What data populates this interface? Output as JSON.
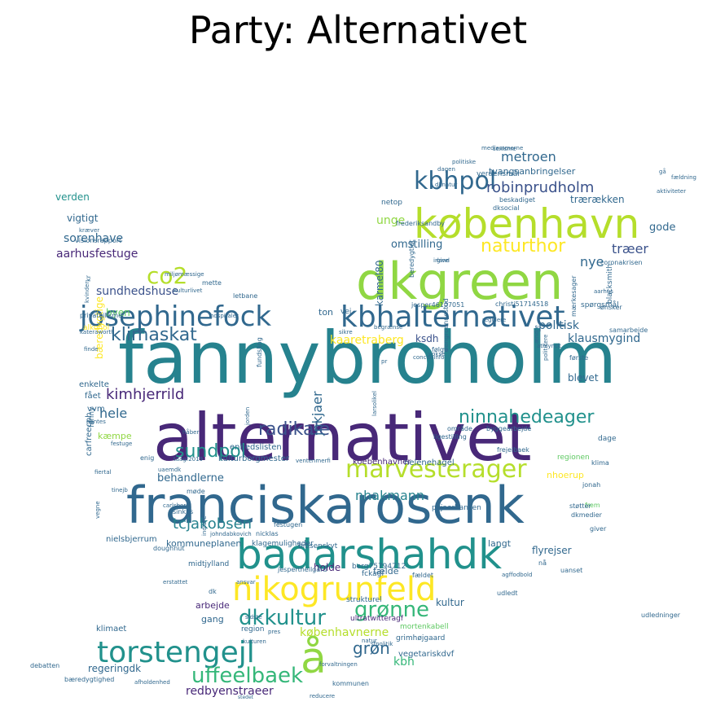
{
  "title": "Party: Alternativet",
  "palette": {
    "c1": "#440154",
    "c2": "#3b528b",
    "c3": "#21918c",
    "c4": "#5ec962",
    "c5": "#fde725",
    "c6": "#31688e",
    "c7": "#35b779",
    "c8": "#90d743",
    "c9": "#482878",
    "c10": "#26828e",
    "c11": "#b5de2b"
  },
  "words": [
    {
      "text": "fannybroholm",
      "color": "c10"
    },
    {
      "text": "alternativet",
      "color": "c9"
    },
    {
      "text": "franciskarosenk",
      "color": "c6"
    },
    {
      "text": "badarshahdk",
      "color": "c3"
    },
    {
      "text": "dkgreen",
      "color": "c8"
    },
    {
      "text": "københavn",
      "color": "c11"
    },
    {
      "text": "nikogrunfeld",
      "color": "c5"
    },
    {
      "text": "kbhalternativet",
      "color": "c6"
    },
    {
      "text": "josephinefock",
      "color": "c6"
    },
    {
      "text": "torstengejl",
      "color": "c3"
    },
    {
      "text": "marvesterager",
      "color": "c11"
    },
    {
      "text": "å",
      "color": "c8"
    },
    {
      "text": "kbhpol",
      "color": "c6"
    },
    {
      "text": "dkkultur",
      "color": "c3"
    },
    {
      "text": "grønne",
      "color": "c7"
    },
    {
      "text": "uffeelbaek",
      "color": "c7"
    },
    {
      "text": "radikale",
      "color": "c2"
    },
    {
      "text": "klimaskat",
      "color": "c6"
    },
    {
      "text": "sundpol",
      "color": "c3"
    },
    {
      "text": "ninnahedeager",
      "color": "c3"
    },
    {
      "text": "naturthor",
      "color": "c5"
    },
    {
      "text": "co2",
      "color": "c11"
    },
    {
      "text": "robinprudholm",
      "color": "c2"
    },
    {
      "text": "metroen",
      "color": "c6"
    },
    {
      "text": "træer",
      "color": "c2"
    },
    {
      "text": "nye",
      "color": "c6"
    },
    {
      "text": "klausmygind",
      "color": "c6"
    },
    {
      "text": "kimhjerrild",
      "color": "c9"
    },
    {
      "text": "grøn",
      "color": "c6"
    },
    {
      "text": "tcjakobsen",
      "color": "c10"
    },
    {
      "text": "nhakmann",
      "color": "c10"
    },
    {
      "text": "jnkjaer",
      "color": "c6"
    },
    {
      "text": "københavnerne",
      "color": "c11"
    },
    {
      "text": "redbyenstraeer",
      "color": "c9"
    },
    {
      "text": "kaaretraberg",
      "color": "c5"
    },
    {
      "text": "sundhedshuse",
      "color": "c2"
    },
    {
      "text": "aarhusfestuge",
      "color": "c9"
    },
    {
      "text": "sorenhave",
      "color": "c6"
    },
    {
      "text": "omstilling",
      "color": "c6"
    },
    {
      "text": "unge",
      "color": "c8"
    },
    {
      "text": "kbh",
      "color": "c7"
    },
    {
      "text": "hele",
      "color": "c6"
    },
    {
      "text": "behandlerne",
      "color": "c6"
    },
    {
      "text": "politisk",
      "color": "c6"
    },
    {
      "text": "blevet",
      "color": "c6"
    },
    {
      "text": "vigtigt",
      "color": "c6"
    },
    {
      "text": "byen",
      "color": "c4"
    },
    {
      "text": "kultur",
      "color": "c6"
    },
    {
      "text": "gode",
      "color": "c6"
    },
    {
      "text": "ksdh",
      "color": "c2"
    },
    {
      "text": "karmel80",
      "color": "c6"
    },
    {
      "text": "trærækken",
      "color": "c6"
    },
    {
      "text": "tvangsanbringelser",
      "color": "c6"
    },
    {
      "text": "verden",
      "color": "c3"
    },
    {
      "text": "bæredygtige",
      "color": "c5"
    },
    {
      "text": "regeringdk",
      "color": "c6"
    },
    {
      "text": "gang",
      "color": "c6"
    },
    {
      "text": "arbejde",
      "color": "c9"
    },
    {
      "text": "holde",
      "color": "c9"
    },
    {
      "text": "fælde",
      "color": "c6"
    },
    {
      "text": "flyrejser",
      "color": "c6"
    },
    {
      "text": "langt",
      "color": "c6"
    },
    {
      "text": "nhoerup",
      "color": "c5"
    },
    {
      "text": "kommuneplanen",
      "color": "c6"
    },
    {
      "text": "helenehagel",
      "color": "c6"
    },
    {
      "text": "enhedslisten",
      "color": "c6"
    },
    {
      "text": "kulturborgmester",
      "color": "c6"
    },
    {
      "text": "koebenhavner",
      "color": "c9"
    },
    {
      "text": "kæmpe",
      "color": "c8"
    },
    {
      "text": "carfreecph",
      "color": "c6"
    },
    {
      "text": "nielsbjerrum",
      "color": "c6"
    },
    {
      "text": "fckagf",
      "color": "c6"
    },
    {
      "text": "vegetariskdvf",
      "color": "c6"
    },
    {
      "text": "strukturel",
      "color": "c6"
    },
    {
      "text": "klimaet",
      "color": "c6"
    },
    {
      "text": "region",
      "color": "c6"
    },
    {
      "text": "grimhøjgaard",
      "color": "c6"
    },
    {
      "text": "ultratwitteragf",
      "color": "c9"
    },
    {
      "text": "mortenkabell",
      "color": "c4"
    },
    {
      "text": "christi51714518",
      "color": "c6"
    },
    {
      "text": "verdensmål",
      "color": "c6"
    },
    {
      "text": "bibsenskyt",
      "color": "c6"
    },
    {
      "text": "berg75794712",
      "color": "c6"
    },
    {
      "text": "pkjaerhansen",
      "color": "c6"
    },
    {
      "text": "byggearbejde",
      "color": "c6"
    },
    {
      "text": "ligestilling",
      "color": "c6"
    },
    {
      "text": "frejelbaek",
      "color": "c6"
    },
    {
      "text": "regionen",
      "color": "c4"
    },
    {
      "text": "dage",
      "color": "c6"
    },
    {
      "text": "klima",
      "color": "c6"
    },
    {
      "text": "jonah",
      "color": "c6"
    },
    {
      "text": "frem",
      "color": "c4"
    },
    {
      "text": "dkmedier",
      "color": "c6"
    },
    {
      "text": "støtter",
      "color": "c6"
    },
    {
      "text": "giver",
      "color": "c6"
    },
    {
      "text": "nå",
      "color": "c6"
    },
    {
      "text": "uanset",
      "color": "c6"
    },
    {
      "text": "agffodbold",
      "color": "c6"
    },
    {
      "text": "udledt",
      "color": "c6"
    },
    {
      "text": "spørgsmål",
      "color": "c6"
    },
    {
      "text": "ønsker",
      "color": "c6"
    },
    {
      "text": "samarbejde",
      "color": "c6"
    },
    {
      "text": "blacksmith",
      "color": "c6"
    },
    {
      "text": "aarhus",
      "color": "c6"
    },
    {
      "text": "coronakrisen",
      "color": "c6"
    },
    {
      "text": "mærkesager",
      "color": "c6"
    },
    {
      "text": "beredygtigt",
      "color": "c6"
    },
    {
      "text": "frederiksandby",
      "color": "c6"
    },
    {
      "text": "beskadiget",
      "color": "c6"
    },
    {
      "text": "dksocial",
      "color": "c6"
    },
    {
      "text": "netop",
      "color": "c6"
    },
    {
      "text": "dagen",
      "color": "c6"
    },
    {
      "text": "politiske",
      "color": "c6"
    },
    {
      "text": "sexisme",
      "color": "c6"
    },
    {
      "text": "medlemmerne",
      "color": "c6"
    },
    {
      "text": "dknatur",
      "color": "c6"
    },
    {
      "text": "irland",
      "color": "c6"
    },
    {
      "text": "give",
      "color": "c6"
    },
    {
      "text": "jesper46107051",
      "color": "c6"
    },
    {
      "text": "ton",
      "color": "c6"
    },
    {
      "text": "vej",
      "color": "c6"
    },
    {
      "text": "alkohol",
      "color": "c5"
    },
    {
      "text": "privatbilisme",
      "color": "c6"
    },
    {
      "text": "kateraworth",
      "color": "c6"
    },
    {
      "text": "kulturlivet",
      "color": "c6"
    },
    {
      "text": "hospitaler",
      "color": "c6"
    },
    {
      "text": "letbane",
      "color": "c6"
    },
    {
      "text": "mette",
      "color": "c6"
    },
    {
      "text": "miljømæssige",
      "color": "c6"
    },
    {
      "text": "kræver",
      "color": "c6"
    },
    {
      "text": "visionsrapport",
      "color": "c6"
    },
    {
      "text": "kr",
      "color": "c6"
    },
    {
      "text": "kvinder",
      "color": "c6"
    },
    {
      "text": "finde",
      "color": "c6"
    },
    {
      "text": "enkelte",
      "color": "c6"
    },
    {
      "text": "fået",
      "color": "c6"
    },
    {
      "text": "vvm",
      "color": "c6"
    },
    {
      "text": "dantes",
      "color": "c6"
    },
    {
      "text": "fanny",
      "color": "c6"
    },
    {
      "text": "enig",
      "color": "c6"
    },
    {
      "text": "uaemdk",
      "color": "c6"
    },
    {
      "text": "indføre",
      "color": "c6"
    },
    {
      "text": "johndabkovich",
      "color": "c6"
    },
    {
      "text": "møde",
      "color": "c6"
    },
    {
      "text": "taagf2019",
      "color": "c6"
    },
    {
      "text": "håber",
      "color": "c6"
    },
    {
      "text": "klagemuligheder",
      "color": "c6"
    },
    {
      "text": "nicklas",
      "color": "c6"
    },
    {
      "text": "festugen",
      "color": "c6"
    },
    {
      "text": "sinkbs",
      "color": "c6"
    },
    {
      "text": "carlsberg",
      "color": "c6"
    },
    {
      "text": "doughnut",
      "color": "c6"
    },
    {
      "text": "midtjylland",
      "color": "c6"
    },
    {
      "text": "jespertheilgard",
      "color": "c6"
    },
    {
      "text": "fældet",
      "color": "c6"
    },
    {
      "text": "dk",
      "color": "c6"
    },
    {
      "text": "ansvar",
      "color": "c6"
    },
    {
      "text": "pres",
      "color": "c6"
    },
    {
      "text": "sidste",
      "color": "c6"
    },
    {
      "text": "kulturen",
      "color": "c6"
    },
    {
      "text": "debatten",
      "color": "c6"
    },
    {
      "text": "bæredygtighed",
      "color": "c6"
    },
    {
      "text": "afholdenhed",
      "color": "c6"
    },
    {
      "text": "stedet",
      "color": "c6"
    },
    {
      "text": "reducere",
      "color": "c6"
    },
    {
      "text": "kommunen",
      "color": "c6"
    },
    {
      "text": "forvaltningen",
      "color": "c6"
    },
    {
      "text": "natur",
      "color": "c6"
    },
    {
      "text": "sfpolitik",
      "color": "c6"
    },
    {
      "text": "udledninger",
      "color": "c6"
    },
    {
      "text": "gå",
      "color": "c6"
    },
    {
      "text": "fældning",
      "color": "c6"
    },
    {
      "text": "aktiviteter",
      "color": "c6"
    },
    {
      "text": "regulere",
      "color": "c6"
    },
    {
      "text": "dengroennestud",
      "color": "c6"
    },
    {
      "text": "vokse",
      "color": "c6"
    },
    {
      "text": "følge",
      "color": "c6"
    },
    {
      "text": "concitoinfo",
      "color": "c6"
    },
    {
      "text": "begrænse",
      "color": "c6"
    },
    {
      "text": "område",
      "color": "c6"
    },
    {
      "text": "ændre",
      "color": "c6"
    },
    {
      "text": "politikere",
      "color": "c6"
    },
    {
      "text": "første",
      "color": "c6"
    },
    {
      "text": "athlynck",
      "color": "c6"
    },
    {
      "text": "tinejb",
      "color": "c6"
    },
    {
      "text": "fiertal",
      "color": "c6"
    },
    {
      "text": "vegne",
      "color": "c6"
    },
    {
      "text": "festuge",
      "color": "c6"
    },
    {
      "text": "fundsling",
      "color": "c6"
    },
    {
      "text": "jorden",
      "color": "c6"
    },
    {
      "text": "sikre",
      "color": "c6"
    },
    {
      "text": "larsolikel",
      "color": "c6"
    },
    {
      "text": "ventenmerfi",
      "color": "c6"
    },
    {
      "text": "erstattet",
      "color": "c6"
    },
    {
      "text": "pr",
      "color": "c6"
    },
    {
      "text": "br",
      "color": "c6"
    },
    {
      "text": "frederik",
      "color": "c6"
    }
  ]
}
